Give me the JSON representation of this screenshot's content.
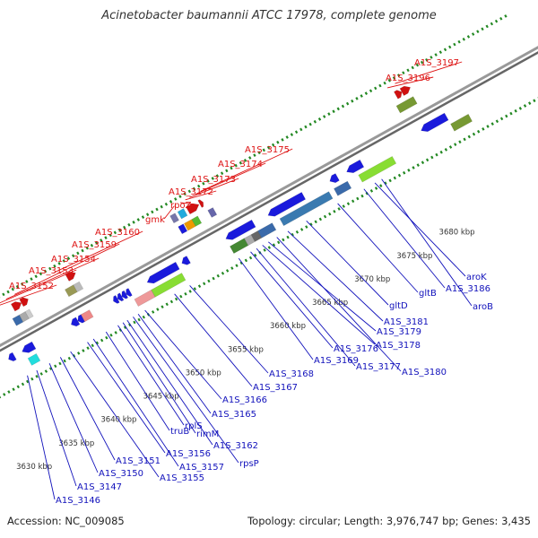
{
  "title": "Acinetobacter baumannii ATCC 17978, complete genome",
  "footer": {
    "accession": "Accession: NC_009085",
    "topology": "Topology: circular; Length: 3,976,747 bp; Genes: 3,435"
  },
  "colors": {
    "top_label": "#dd1111",
    "bottom_label": "#1111bb",
    "ring_dots": "#228822",
    "backbone": "#777777"
  },
  "scale_ticks": [
    {
      "label": "3630 kbp",
      "kbp": 3630
    },
    {
      "label": "3635 kbp",
      "kbp": 3635
    },
    {
      "label": "3640 kbp",
      "kbp": 3640
    },
    {
      "label": "3645 kbp",
      "kbp": 3645
    },
    {
      "label": "3650 kbp",
      "kbp": 3650
    },
    {
      "label": "3655 kbp",
      "kbp": 3655
    },
    {
      "label": "3660 kbp",
      "kbp": 3660
    },
    {
      "label": "3665 kbp",
      "kbp": 3665
    },
    {
      "label": "3670 kbp",
      "kbp": 3670
    },
    {
      "label": "3675 kbp",
      "kbp": 3675
    },
    {
      "label": "3680 kbp",
      "kbp": 3680
    }
  ],
  "top_genes": [
    {
      "label": "A1S_3152",
      "kbp": 3633.2
    },
    {
      "label": "A1S_3153",
      "kbp": 3634.4
    },
    {
      "label": "A1S_3154",
      "kbp": 3635.4
    },
    {
      "label": "A1S_3159",
      "kbp": 3636.4
    },
    {
      "label": "A1S_3160",
      "kbp": 3641.1
    },
    {
      "label": "gmk",
      "kbp": 3655.3
    },
    {
      "label": "rpoZ",
      "kbp": 3656.0
    },
    {
      "label": "A1S_3172",
      "kbp": 3656.6
    },
    {
      "label": "A1S_3173",
      "kbp": 3657.1
    },
    {
      "label": "A1S_3174",
      "kbp": 3657.8
    },
    {
      "label": "A1S_3175",
      "kbp": 3658.4
    },
    {
      "label": "A1S_3196",
      "kbp": 3680.5
    },
    {
      "label": "A1S_3197",
      "kbp": 3681.4
    }
  ],
  "bottom_genes": [
    {
      "label": "A1S_3146",
      "kbp": 3633.5
    },
    {
      "label": "A1S_3147",
      "kbp": 3634.6
    },
    {
      "label": "A1S_3150",
      "kbp": 3636.1
    },
    {
      "label": "A1S_3151",
      "kbp": 3637.4
    },
    {
      "label": "A1S_3155",
      "kbp": 3638.6
    },
    {
      "label": "A1S_3156",
      "kbp": 3640.6
    },
    {
      "label": "A1S_3157",
      "kbp": 3641.3
    },
    {
      "label": "truB",
      "kbp": 3642.8
    },
    {
      "label": "rplS",
      "kbp": 3644.2
    },
    {
      "label": "rimM",
      "kbp": 3644.8
    },
    {
      "label": "A1S_3162",
      "kbp": 3645.3
    },
    {
      "label": "rpsP",
      "kbp": 3646.0
    },
    {
      "label": "A1S_3165",
      "kbp": 3646.6
    },
    {
      "label": "A1S_3166",
      "kbp": 3647.4
    },
    {
      "label": "A1S_3167",
      "kbp": 3650.9
    },
    {
      "label": "A1S_3168",
      "kbp": 3652.7
    },
    {
      "label": "A1S_3169",
      "kbp": 3658.5
    },
    {
      "label": "A1S_3176",
      "kbp": 3659.9
    },
    {
      "label": "A1S_3177",
      "kbp": 3660.6
    },
    {
      "label": "A1S_3178",
      "kbp": 3661.3
    },
    {
      "label": "A1S_3179",
      "kbp": 3662.0
    },
    {
      "label": "A1S_3180",
      "kbp": 3663.0
    },
    {
      "label": "A1S_3181",
      "kbp": 3664.3
    },
    {
      "label": "gltD",
      "kbp": 3666.5
    },
    {
      "label": "gltB",
      "kbp": 3670.2
    },
    {
      "label": "A1S_3186",
      "kbp": 3673.3
    },
    {
      "label": "aroK",
      "kbp": 3674.6
    },
    {
      "label": "aroB",
      "kbp": 3675.4
    }
  ],
  "features": [
    {
      "name": "3143",
      "strand": "plus",
      "start": 3629.3,
      "end": 3630.2,
      "color": "#9a9a9a",
      "row": "inner"
    },
    {
      "name": "3144",
      "strand": "plus",
      "start": 3630.2,
      "end": 3630.8,
      "color": "#d01010",
      "row": "outer",
      "shape": "arrow"
    },
    {
      "name": "3145",
      "strand": "minus",
      "start": 3632.6,
      "end": 3633.3,
      "color": "#1a1adc",
      "row": "inner",
      "shape": "arrow"
    },
    {
      "name": "3146",
      "strand": "minus",
      "start": 3634.2,
      "end": 3635.6,
      "color": "#1a1adc",
      "row": "inner",
      "shape": "arrow"
    },
    {
      "name": "3147",
      "strand": "minus",
      "start": 3634.4,
      "end": 3635.4,
      "color": "#22dddd",
      "row": "outer"
    },
    {
      "name": "3148",
      "strand": "plus",
      "start": 3632.2,
      "end": 3632.8,
      "color": "#aaaaaa",
      "row": "inner"
    },
    {
      "name": "3149",
      "strand": "plus",
      "start": 3633.0,
      "end": 3633.5,
      "color": "#d01010",
      "row": "outer",
      "shape": "arrow"
    },
    {
      "name": "3152",
      "strand": "plus",
      "start": 3635.0,
      "end": 3635.8,
      "color": "#3a6aaa",
      "row": "inner"
    },
    {
      "name": "3153",
      "strand": "plus",
      "start": 3635.8,
      "end": 3636.5,
      "color": "#aaaaaa",
      "row": "inner"
    },
    {
      "name": "3154",
      "strand": "plus",
      "start": 3636.5,
      "end": 3637.0,
      "color": "#cccccc",
      "row": "inner"
    },
    {
      "name": "3154b",
      "strand": "plus",
      "start": 3635.6,
      "end": 3636.6,
      "color": "#d01010",
      "row": "outer",
      "shape": "arrow"
    },
    {
      "name": "3159b",
      "strand": "plus",
      "start": 3636.6,
      "end": 3637.4,
      "color": "#d01010",
      "row": "outer",
      "shape": "arrow"
    },
    {
      "name": "3155",
      "strand": "minus",
      "start": 3640.0,
      "end": 3640.8,
      "color": "#1a1adc",
      "row": "inner",
      "shape": "arrow"
    },
    {
      "name": "3156",
      "strand": "minus",
      "start": 3640.8,
      "end": 3641.4,
      "color": "#1a1adc",
      "row": "inner",
      "shape": "arrow"
    },
    {
      "name": "3157",
      "strand": "minus",
      "start": 3641.4,
      "end": 3642.4,
      "color": "#ee8888",
      "row": "inner"
    },
    {
      "name": "3160",
      "strand": "plus",
      "start": 3641.2,
      "end": 3642.2,
      "color": "#999955",
      "row": "inner"
    },
    {
      "name": "3160b",
      "strand": "plus",
      "start": 3642.2,
      "end": 3642.9,
      "color": "#bbbbbb",
      "row": "inner"
    },
    {
      "name": "3160c",
      "strand": "plus",
      "start": 3642.0,
      "end": 3643.0,
      "color": "#d01010",
      "row": "outer",
      "shape": "arrow"
    },
    {
      "name": "truB",
      "strand": "minus",
      "start": 3645.0,
      "end": 3645.5,
      "color": "#1a1adc",
      "row": "inner",
      "shape": "arrow"
    },
    {
      "name": "rplS",
      "strand": "minus",
      "start": 3645.5,
      "end": 3646.0,
      "color": "#1a1adc",
      "row": "inner",
      "shape": "arrow"
    },
    {
      "name": "rimM",
      "strand": "minus",
      "start": 3646.0,
      "end": 3646.5,
      "color": "#1a1adc",
      "row": "inner",
      "shape": "arrow"
    },
    {
      "name": "rpsP",
      "strand": "minus",
      "start": 3646.5,
      "end": 3647.0,
      "color": "#1a1adc",
      "row": "inner",
      "shape": "arrow"
    },
    {
      "name": "3162b",
      "strand": "minus",
      "start": 3647.0,
      "end": 3649.0,
      "color": "#ee9999",
      "row": "outer"
    },
    {
      "name": "3165",
      "strand": "minus",
      "start": 3649.0,
      "end": 3652.6,
      "color": "#1a1adc",
      "row": "inner",
      "shape": "arrow"
    },
    {
      "name": "3165b",
      "strand": "minus",
      "start": 3649.0,
      "end": 3652.6,
      "color": "#88dd33",
      "row": "outer"
    },
    {
      "name": "3167",
      "strand": "minus",
      "start": 3653.1,
      "end": 3653.9,
      "color": "#1a1adc",
      "row": "inner",
      "shape": "arrow"
    },
    {
      "name": "3168",
      "strand": "plus",
      "start": 3654.6,
      "end": 3655.2,
      "color": "#1a1adc",
      "row": "inner"
    },
    {
      "name": "3168b",
      "strand": "plus",
      "start": 3654.4,
      "end": 3655.0,
      "color": "#7777aa",
      "row": "outer"
    },
    {
      "name": "gmk",
      "strand": "plus",
      "start": 3655.3,
      "end": 3656.2,
      "color": "#ee9900",
      "row": "inner"
    },
    {
      "name": "rpoZ",
      "strand": "plus",
      "start": 3656.2,
      "end": 3656.9,
      "color": "#55bb33",
      "row": "inner"
    },
    {
      "name": "3172",
      "strand": "plus",
      "start": 3655.3,
      "end": 3656.0,
      "color": "#22aadd",
      "row": "outer"
    },
    {
      "name": "3173",
      "strand": "plus",
      "start": 3656.3,
      "end": 3657.6,
      "color": "#d01010",
      "row": "outer",
      "shape": "arrow"
    },
    {
      "name": "3174",
      "strand": "plus",
      "start": 3657.7,
      "end": 3658.1,
      "color": "#d01010",
      "row": "outer",
      "shape": "arrow"
    },
    {
      "name": "3175",
      "strand": "plus",
      "start": 3658.1,
      "end": 3658.7,
      "color": "#6666aa",
      "row": "inner"
    },
    {
      "name": "3169",
      "strand": "minus",
      "start": 3658.3,
      "end": 3661.6,
      "color": "#1a1adc",
      "row": "inner",
      "shape": "arrow"
    },
    {
      "name": "3176",
      "strand": "minus",
      "start": 3658.3,
      "end": 3660.0,
      "color": "#448833",
      "row": "outer"
    },
    {
      "name": "3177",
      "strand": "minus",
      "start": 3660.0,
      "end": 3660.8,
      "color": "#aaaaaa",
      "row": "outer"
    },
    {
      "name": "3178",
      "strand": "minus",
      "start": 3660.8,
      "end": 3661.6,
      "color": "#666666",
      "row": "outer"
    },
    {
      "name": "3180",
      "strand": "minus",
      "start": 3661.6,
      "end": 3663.3,
      "color": "#3a6aaa",
      "row": "outer"
    },
    {
      "name": "gltD",
      "strand": "minus",
      "start": 3663.3,
      "end": 3667.5,
      "color": "#1a1adc",
      "row": "inner",
      "shape": "arrow"
    },
    {
      "name": "gltB",
      "strand": "minus",
      "start": 3664.2,
      "end": 3670.0,
      "color": "#3a7ab0",
      "row": "outer"
    },
    {
      "name": "3186",
      "strand": "minus",
      "start": 3670.6,
      "end": 3671.5,
      "color": "#1a1adc",
      "row": "inner",
      "shape": "arrow"
    },
    {
      "name": "3186b",
      "strand": "minus",
      "start": 3670.6,
      "end": 3672.2,
      "color": "#3a6aaa",
      "row": "outer"
    },
    {
      "name": "aroK",
      "strand": "minus",
      "start": 3672.6,
      "end": 3674.4,
      "color": "#1a1adc",
      "row": "inner",
      "shape": "arrow"
    },
    {
      "name": "aroB",
      "strand": "minus",
      "start": 3673.5,
      "end": 3677.5,
      "color": "#88dd33",
      "row": "outer"
    },
    {
      "name": "3196",
      "strand": "plus",
      "start": 3680.4,
      "end": 3682.4,
      "color": "#779933",
      "row": "inner"
    },
    {
      "name": "3197",
      "strand": "plus",
      "start": 3680.9,
      "end": 3681.6,
      "color": "#d01010",
      "row": "outer",
      "shape": "arrow"
    },
    {
      "name": "3197b",
      "strand": "plus",
      "start": 3681.6,
      "end": 3682.6,
      "color": "#d01010",
      "row": "outer",
      "shape": "arrow"
    },
    {
      "name": "3199",
      "strand": "minus",
      "start": 3681.4,
      "end": 3684.4,
      "color": "#1a1adc",
      "row": "inner",
      "shape": "arrow"
    },
    {
      "name": "3200",
      "strand": "minus",
      "start": 3684.4,
      "end": 3686.5,
      "color": "#779933",
      "row": "outer"
    }
  ]
}
